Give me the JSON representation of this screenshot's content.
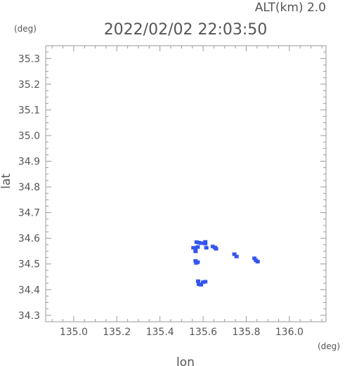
{
  "header": {
    "altitude": "ALT(km) 2.0",
    "datetime": "2022/02/02 22:03:50"
  },
  "chart_data": {
    "type": "scatter",
    "xlabel": "lon",
    "ylabel": "lat",
    "x_unit": "(deg)",
    "y_unit": "(deg)",
    "xlim": [
      134.87,
      136.17
    ],
    "ylim": [
      34.275,
      35.35
    ],
    "xticks": [
      "135.0",
      "135.2",
      "135.4",
      "135.6",
      "135.8",
      "136.0"
    ],
    "yticks": [
      "34.3",
      "34.4",
      "34.5",
      "34.6",
      "34.7",
      "34.8",
      "34.9",
      "35.0",
      "35.1",
      "35.2",
      "35.3"
    ],
    "grid": false,
    "marker_color": "#3355ee",
    "points": [
      {
        "x": 135.57,
        "y": 34.585
      },
      {
        "x": 135.58,
        "y": 34.583
      },
      {
        "x": 135.59,
        "y": 34.581
      },
      {
        "x": 135.61,
        "y": 34.579
      },
      {
        "x": 135.61,
        "y": 34.586
      },
      {
        "x": 135.555,
        "y": 34.563
      },
      {
        "x": 135.565,
        "y": 34.561
      },
      {
        "x": 135.575,
        "y": 34.566
      },
      {
        "x": 135.565,
        "y": 34.549
      },
      {
        "x": 135.615,
        "y": 34.563
      },
      {
        "x": 135.645,
        "y": 34.568
      },
      {
        "x": 135.655,
        "y": 34.564
      },
      {
        "x": 135.66,
        "y": 34.559
      },
      {
        "x": 135.565,
        "y": 34.512
      },
      {
        "x": 135.568,
        "y": 34.504
      },
      {
        "x": 135.575,
        "y": 34.507
      },
      {
        "x": 135.745,
        "y": 34.538
      },
      {
        "x": 135.755,
        "y": 34.529
      },
      {
        "x": 135.838,
        "y": 34.522
      },
      {
        "x": 135.845,
        "y": 34.514
      },
      {
        "x": 135.853,
        "y": 34.509
      },
      {
        "x": 135.577,
        "y": 34.433
      },
      {
        "x": 135.58,
        "y": 34.421
      },
      {
        "x": 135.59,
        "y": 34.419
      },
      {
        "x": 135.6,
        "y": 34.429
      },
      {
        "x": 135.61,
        "y": 34.431
      }
    ]
  }
}
